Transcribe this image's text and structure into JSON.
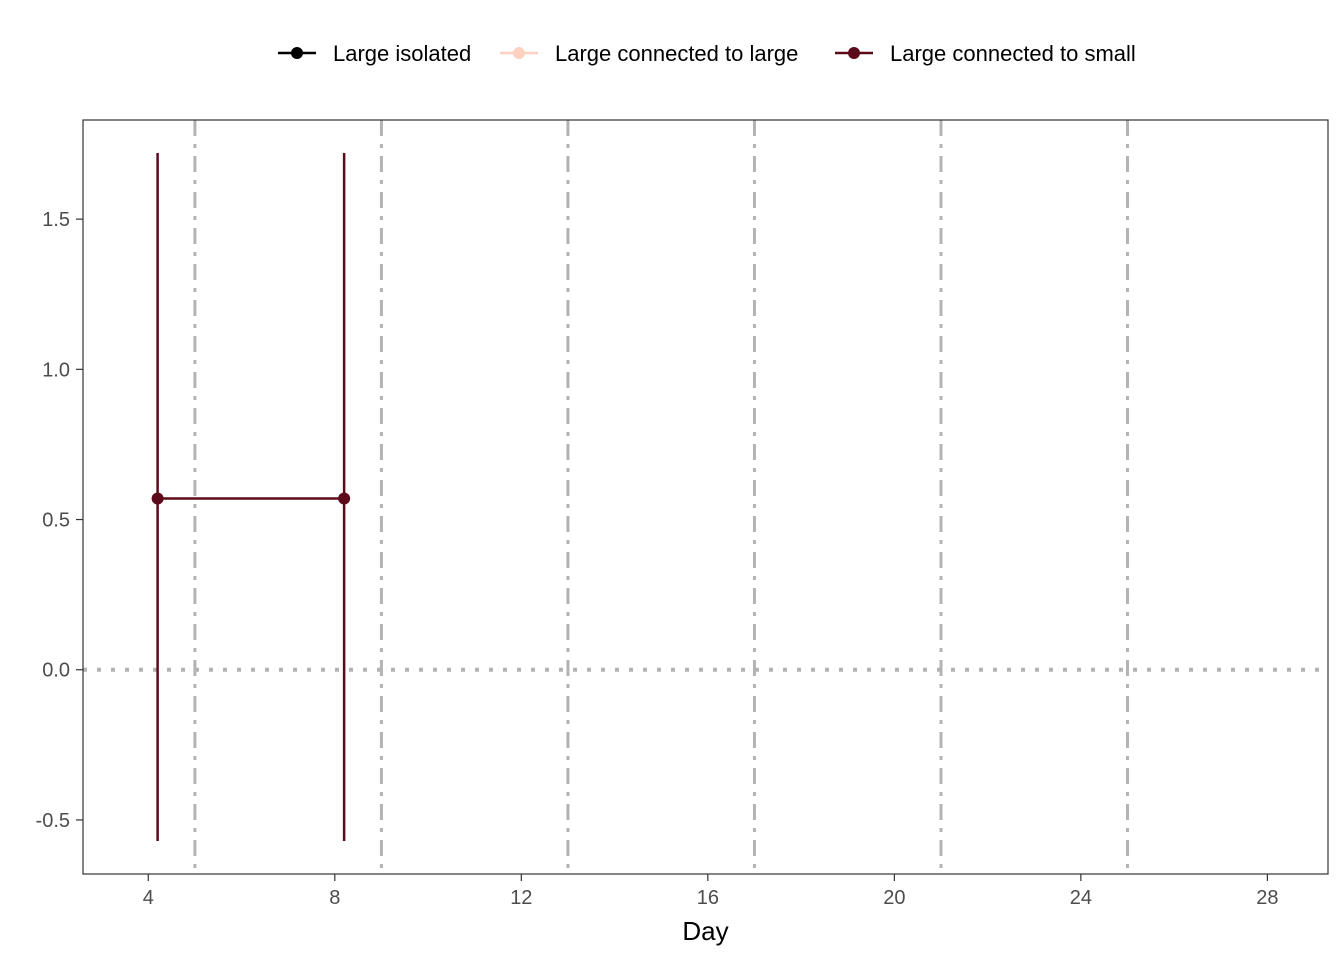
{
  "chart_data": {
    "type": "line",
    "title": "",
    "xlabel": "Day",
    "ylabel": "",
    "xlim": [
      2.6,
      29.3
    ],
    "ylim": [
      -0.68,
      1.83
    ],
    "x_ticks": [
      4,
      8,
      12,
      16,
      20,
      24,
      28
    ],
    "x_tick_labels": [
      "4",
      "8",
      "12",
      "16",
      "20",
      "24",
      "28"
    ],
    "y_ticks": [
      -0.5,
      0.0,
      0.5,
      1.0,
      1.5
    ],
    "y_tick_labels": [
      "-0.5",
      "0.0",
      "0.5",
      "1.0",
      "1.5"
    ],
    "grid": false,
    "legend_position": "top",
    "reference_lines": {
      "horizontal": [
        {
          "y": 0,
          "style": "dotted",
          "color": "#b3b3b3"
        }
      ],
      "vertical": [
        {
          "x": 5,
          "style": "dashdot",
          "color": "#b3b3b3"
        },
        {
          "x": 9,
          "style": "dashdot",
          "color": "#b3b3b3"
        },
        {
          "x": 13,
          "style": "dashdot",
          "color": "#b3b3b3"
        },
        {
          "x": 17,
          "style": "dashdot",
          "color": "#b3b3b3"
        },
        {
          "x": 21,
          "style": "dashdot",
          "color": "#b3b3b3"
        },
        {
          "x": 25,
          "style": "dashdot",
          "color": "#b3b3b3"
        }
      ]
    },
    "series": [
      {
        "name": "Large isolated",
        "color": "#000000",
        "points": []
      },
      {
        "name": "Large connected to large",
        "color": "#fdd0c0",
        "points": []
      },
      {
        "name": "Large connected to small",
        "color": "#5c0a1a",
        "points": [
          {
            "x": 4.2,
            "y": 0.57,
            "ymin": -0.57,
            "ymax": 1.72
          },
          {
            "x": 8.2,
            "y": 0.57,
            "ymin": -0.57,
            "ymax": 1.72
          }
        ]
      }
    ]
  }
}
